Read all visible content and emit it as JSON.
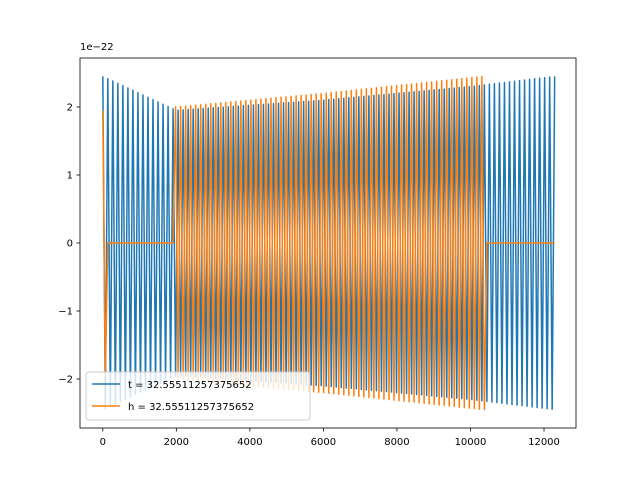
{
  "chart_data": {
    "type": "line",
    "title": "",
    "xlabel": "",
    "ylabel": "",
    "y_offset_label": "1e−22",
    "xlim": [
      -620,
      12870
    ],
    "ylim": [
      -2.72,
      2.72
    ],
    "x_ticks": [
      {
        "value": 0,
        "label": "0"
      },
      {
        "value": 2000,
        "label": "2000"
      },
      {
        "value": 4000,
        "label": "4000"
      },
      {
        "value": 6000,
        "label": "6000"
      },
      {
        "value": 8000,
        "label": "8000"
      },
      {
        "value": 10000,
        "label": "10000"
      },
      {
        "value": 12000,
        "label": "12000"
      }
    ],
    "y_ticks": [
      {
        "value": -2,
        "label": "−2"
      },
      {
        "value": -1,
        "label": "−1"
      },
      {
        "value": 0,
        "label": "0"
      },
      {
        "value": 1,
        "label": "1"
      },
      {
        "value": 2,
        "label": "2"
      }
    ],
    "grid": false,
    "legend_position": "lower-left",
    "series": [
      {
        "name": "t = 32.55511257375652",
        "color": "#1f77b4",
        "x_start": 0,
        "x_end": 12290,
        "cycles": 90,
        "zero_segments": [],
        "amplitude_points": [
          [
            0,
            2.45
          ],
          [
            2000,
            1.95
          ],
          [
            6000,
            2.1
          ],
          [
            10000,
            2.3
          ],
          [
            12290,
            2.45
          ]
        ]
      },
      {
        "name": "h = 32.55511257375652",
        "color": "#ff7f0e",
        "x_start": 0,
        "x_end": 12290,
        "cycles": 90,
        "zero_segments": [
          [
            90,
            1950
          ],
          [
            10400,
            12290
          ]
        ],
        "amplitude_points": [
          [
            0,
            1.95
          ],
          [
            2000,
            2.0
          ],
          [
            6000,
            2.2
          ],
          [
            10350,
            2.45
          ]
        ]
      }
    ]
  }
}
